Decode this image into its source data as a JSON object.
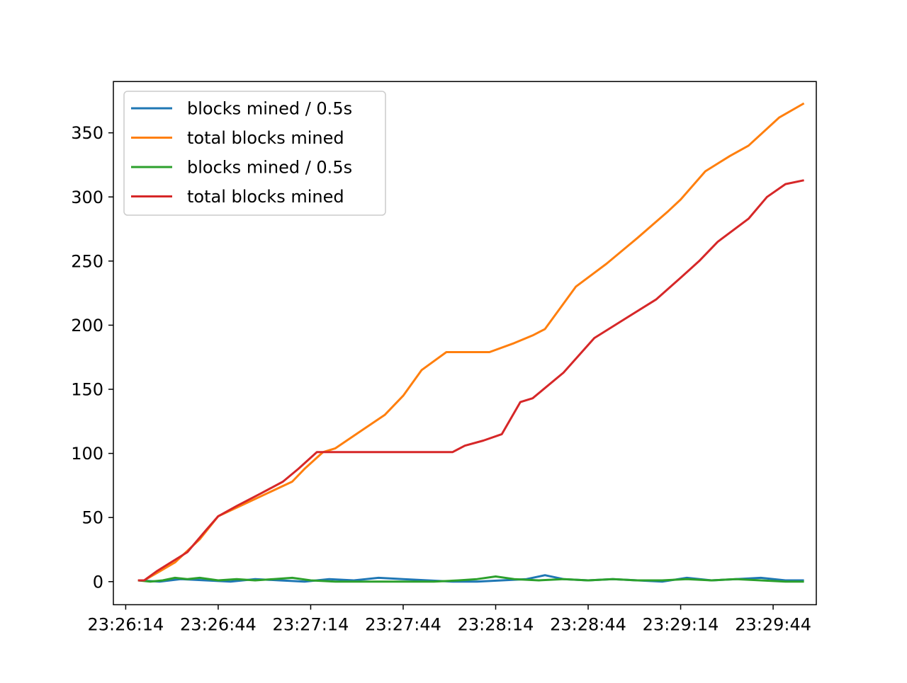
{
  "chart_data": {
    "type": "line",
    "title": "",
    "xlabel": "",
    "ylabel": "",
    "x_tick_labels": [
      "23:26:14",
      "23:26:44",
      "23:27:14",
      "23:27:44",
      "23:28:14",
      "23:28:44",
      "23:29:14",
      "23:29:44"
    ],
    "x_ticks": [
      "23:26:14",
      "23:26:44",
      "23:27:14",
      "23:27:44",
      "23:28:14",
      "23:28:44",
      "23:29:14",
      "23:29:44"
    ],
    "xlim": [
      "23:26:10",
      "23:29:58"
    ],
    "ylim": [
      -18,
      390
    ],
    "y_ticks": [
      0,
      50,
      100,
      150,
      200,
      250,
      300,
      350
    ],
    "grid": false,
    "legend_position": "upper-left",
    "series": [
      {
        "name": "blocks mined / 0.5s",
        "color": "#1f77b4",
        "x": [
          "23:26:18",
          "23:26:25",
          "23:26:32",
          "23:26:40",
          "23:26:48",
          "23:26:56",
          "23:27:04",
          "23:27:12",
          "23:27:20",
          "23:27:28",
          "23:27:36",
          "23:27:44",
          "23:27:52",
          "23:28:00",
          "23:28:08",
          "23:28:16",
          "23:28:24",
          "23:28:30",
          "23:28:36",
          "23:28:44",
          "23:28:52",
          "23:29:00",
          "23:29:08",
          "23:29:16",
          "23:29:24",
          "23:29:32",
          "23:29:40",
          "23:29:48",
          "23:29:54"
        ],
        "y": [
          1,
          0,
          2,
          1,
          0,
          2,
          1,
          0,
          2,
          1,
          3,
          2,
          1,
          0,
          0,
          1,
          2,
          5,
          2,
          1,
          2,
          1,
          0,
          3,
          1,
          2,
          3,
          1,
          1
        ]
      },
      {
        "name": "total blocks mined",
        "color": "#ff7f0e",
        "x": [
          "23:26:18",
          "23:26:20",
          "23:26:25",
          "23:26:30",
          "23:26:38",
          "23:26:44",
          "23:26:52",
          "23:27:00",
          "23:27:08",
          "23:27:12",
          "23:27:18",
          "23:27:22",
          "23:27:30",
          "23:27:38",
          "23:27:44",
          "23:27:50",
          "23:27:58",
          "23:28:04",
          "23:28:12",
          "23:28:20",
          "23:28:26",
          "23:28:30",
          "23:28:40",
          "23:28:50",
          "23:29:00",
          "23:29:10",
          "23:29:14",
          "23:29:22",
          "23:29:30",
          "23:29:36",
          "23:29:46",
          "23:29:54"
        ],
        "y": [
          1,
          1,
          8,
          15,
          33,
          51,
          60,
          69,
          78,
          88,
          101,
          104,
          117,
          130,
          145,
          165,
          179,
          179,
          179,
          186,
          192,
          197,
          230,
          248,
          268,
          289,
          298,
          320,
          332,
          340,
          362,
          373
        ]
      },
      {
        "name": "blocks mined / 0.5s",
        "color": "#2ca02c",
        "x": [
          "23:26:18",
          "23:26:22",
          "23:26:26",
          "23:26:30",
          "23:26:34",
          "23:26:38",
          "23:26:44",
          "23:26:50",
          "23:26:56",
          "23:27:02",
          "23:27:08",
          "23:27:14",
          "23:27:22",
          "23:27:30",
          "23:27:38",
          "23:27:46",
          "23:27:54",
          "23:28:02",
          "23:28:08",
          "23:28:14",
          "23:28:20",
          "23:28:28",
          "23:28:36",
          "23:28:44",
          "23:28:52",
          "23:29:00",
          "23:29:08",
          "23:29:16",
          "23:29:24",
          "23:29:32",
          "23:29:40",
          "23:29:48",
          "23:29:54"
        ],
        "y": [
          1,
          0,
          1,
          3,
          2,
          3,
          1,
          2,
          1,
          2,
          3,
          1,
          0,
          0,
          0,
          0,
          0,
          1,
          2,
          4,
          2,
          1,
          2,
          1,
          2,
          1,
          1,
          2,
          1,
          2,
          1,
          0,
          0
        ]
      },
      {
        "name": "total blocks mined",
        "color": "#d62728",
        "x": [
          "23:26:18",
          "23:26:20",
          "23:26:24",
          "23:26:28",
          "23:26:34",
          "23:26:40",
          "23:26:44",
          "23:26:50",
          "23:26:58",
          "23:27:05",
          "23:27:10",
          "23:27:16",
          "23:27:40",
          "23:28:00",
          "23:28:04",
          "23:28:10",
          "23:28:16",
          "23:28:22",
          "23:28:26",
          "23:28:36",
          "23:28:46",
          "23:28:56",
          "23:29:06",
          "23:29:14",
          "23:29:20",
          "23:29:26",
          "23:29:36",
          "23:29:42",
          "23:29:48",
          "23:29:54"
        ],
        "y": [
          1,
          1,
          8,
          14,
          23,
          40,
          51,
          59,
          69,
          78,
          88,
          101,
          101,
          101,
          106,
          110,
          115,
          140,
          143,
          163,
          190,
          205,
          220,
          237,
          250,
          265,
          283,
          300,
          310,
          313
        ]
      }
    ]
  }
}
